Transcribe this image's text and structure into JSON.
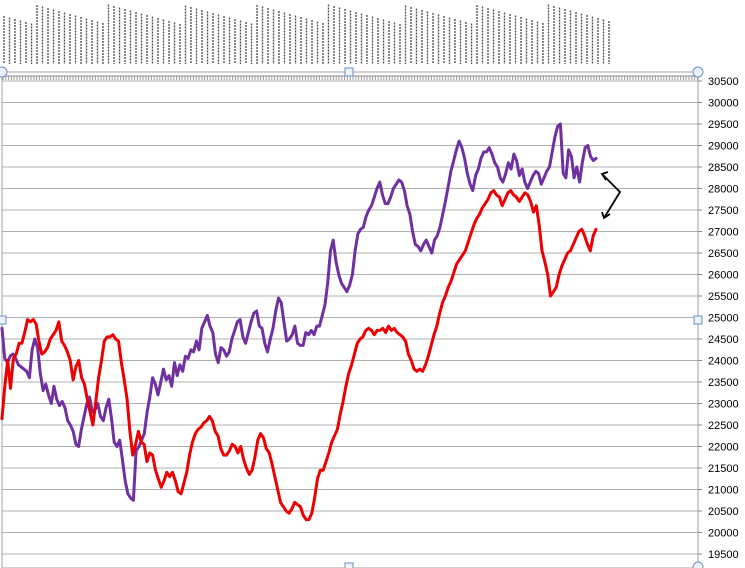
{
  "chart_data": {
    "type": "line",
    "title": "",
    "xlabel": "",
    "ylabel": "",
    "y_axis_position": "right",
    "ylim": [
      19500,
      30500
    ],
    "y_ticks": [
      19500,
      20000,
      20500,
      21000,
      21500,
      22000,
      22500,
      23000,
      23500,
      24000,
      24500,
      25000,
      25500,
      26000,
      26500,
      27000,
      27500,
      28000,
      28500,
      29000,
      29500,
      30000,
      30500
    ],
    "grid": true,
    "legend": "none",
    "x_tick_labels_rotated": true,
    "x_tick_labels_note": "x-axis date labels at top are rotated and unreadable",
    "series": [
      {
        "color": "#7030a0",
        "values": [
          24750,
          24050,
          23950,
          24100,
          24150,
          24050,
          23900,
          23850,
          23800,
          23750,
          23600,
          24250,
          24500,
          24300,
          23700,
          23300,
          23450,
          23200,
          23000,
          23400,
          23100,
          22950,
          23050,
          22900,
          22600,
          22500,
          22350,
          22050,
          22000,
          22400,
          22700,
          23000,
          23150,
          22800,
          22850,
          23000,
          22700,
          22600,
          22900,
          23100,
          22650,
          22100,
          22000,
          22150,
          21700,
          21200,
          20900,
          20800,
          20750,
          21900,
          22000,
          22150,
          22300,
          22800,
          23150,
          23600,
          23450,
          23200,
          23500,
          23800,
          23550,
          23650,
          23400,
          23950,
          23650,
          23900,
          23750,
          24100,
          24050,
          24250,
          24200,
          24450,
          24250,
          24750,
          24900,
          25050,
          24800,
          24650,
          24150,
          23950,
          24300,
          24250,
          24100,
          24200,
          24500,
          24700,
          24900,
          24950,
          24550,
          24400,
          24650,
          24900,
          25100,
          25150,
          24800,
          24750,
          24400,
          24200,
          24500,
          24750,
          25150,
          25450,
          25350,
          24900,
          24450,
          24500,
          24600,
          24800,
          24400,
          24350,
          24350,
          24650,
          24600,
          24700,
          24600,
          24800,
          24800,
          25050,
          25300,
          25800,
          26550,
          26800,
          26300,
          26000,
          25800,
          25700,
          25600,
          25750,
          26000,
          26550,
          26950,
          27050,
          27100,
          27350,
          27500,
          27600,
          27800,
          28000,
          28150,
          27850,
          27650,
          27650,
          27800,
          28000,
          28100,
          28200,
          28150,
          27950,
          27600,
          27400,
          27000,
          26700,
          26650,
          26550,
          26700,
          26800,
          26650,
          26500,
          26800,
          26900,
          27100,
          27400,
          27700,
          28050,
          28400,
          28650,
          28900,
          29100,
          28950,
          28700,
          28350,
          28100,
          27950,
          28300,
          28450,
          28700,
          28850,
          28850,
          28950,
          28800,
          28600,
          28500,
          28250,
          28150,
          28350,
          28600,
          28450,
          28800,
          28650,
          28300,
          28450,
          28150,
          28000,
          28150,
          28300,
          28400,
          28350,
          28100,
          28250,
          28400,
          28500,
          28850,
          29200,
          29450,
          29500,
          28350,
          28250,
          28900,
          28750,
          28250,
          28500,
          28150,
          28600,
          28950,
          29000,
          28750,
          28650,
          28700
        ]
      },
      {
        "color": "#ee0000",
        "values": [
          22650,
          23400,
          24000,
          23350,
          24050,
          24150,
          24400,
          24400,
          24650,
          24950,
          24900,
          24950,
          24850,
          24450,
          24150,
          24200,
          24300,
          24500,
          24600,
          24700,
          24900,
          24450,
          24350,
          24200,
          24000,
          23550,
          23850,
          24000,
          23600,
          23450,
          23100,
          22800,
          22500,
          23050,
          23600,
          24000,
          24450,
          24550,
          24550,
          24600,
          24500,
          24450,
          23950,
          23550,
          23100,
          22350,
          21800,
          22050,
          22350,
          22100,
          22050,
          21650,
          21850,
          21800,
          21450,
          21250,
          21050,
          21200,
          21400,
          21300,
          21400,
          21200,
          20950,
          20900,
          21150,
          21400,
          21800,
          22100,
          22300,
          22400,
          22450,
          22550,
          22600,
          22700,
          22600,
          22350,
          22250,
          21950,
          21800,
          21800,
          21900,
          22050,
          22000,
          21850,
          22000,
          21700,
          21500,
          21350,
          21450,
          21750,
          22150,
          22300,
          22200,
          21950,
          21850,
          21600,
          21300,
          21000,
          20700,
          20600,
          20500,
          20450,
          20550,
          20700,
          20650,
          20600,
          20400,
          20300,
          20300,
          20450,
          20800,
          21250,
          21450,
          21450,
          21650,
          21850,
          22100,
          22250,
          22400,
          22750,
          23050,
          23400,
          23700,
          23900,
          24150,
          24400,
          24500,
          24550,
          24700,
          24750,
          24700,
          24600,
          24700,
          24700,
          24750,
          24650,
          24800,
          24700,
          24750,
          24650,
          24600,
          24550,
          24450,
          24150,
          24000,
          23800,
          23750,
          23800,
          23750,
          23900,
          24100,
          24350,
          24600,
          24800,
          25100,
          25350,
          25500,
          25700,
          25850,
          26050,
          26250,
          26350,
          26450,
          26550,
          26750,
          26950,
          27150,
          27300,
          27400,
          27550,
          27650,
          27750,
          27900,
          27950,
          27850,
          27800,
          27600,
          27750,
          27900,
          27950,
          27850,
          27800,
          27700,
          27800,
          27900,
          27850,
          27700,
          27450,
          27600,
          27150,
          26550,
          26300,
          26000,
          25500,
          25600,
          25700,
          26000,
          26200,
          26350,
          26500,
          26550,
          26700,
          26850,
          27000,
          27050,
          26900,
          26700,
          26550,
          26900,
          27050
        ]
      }
    ]
  }
}
